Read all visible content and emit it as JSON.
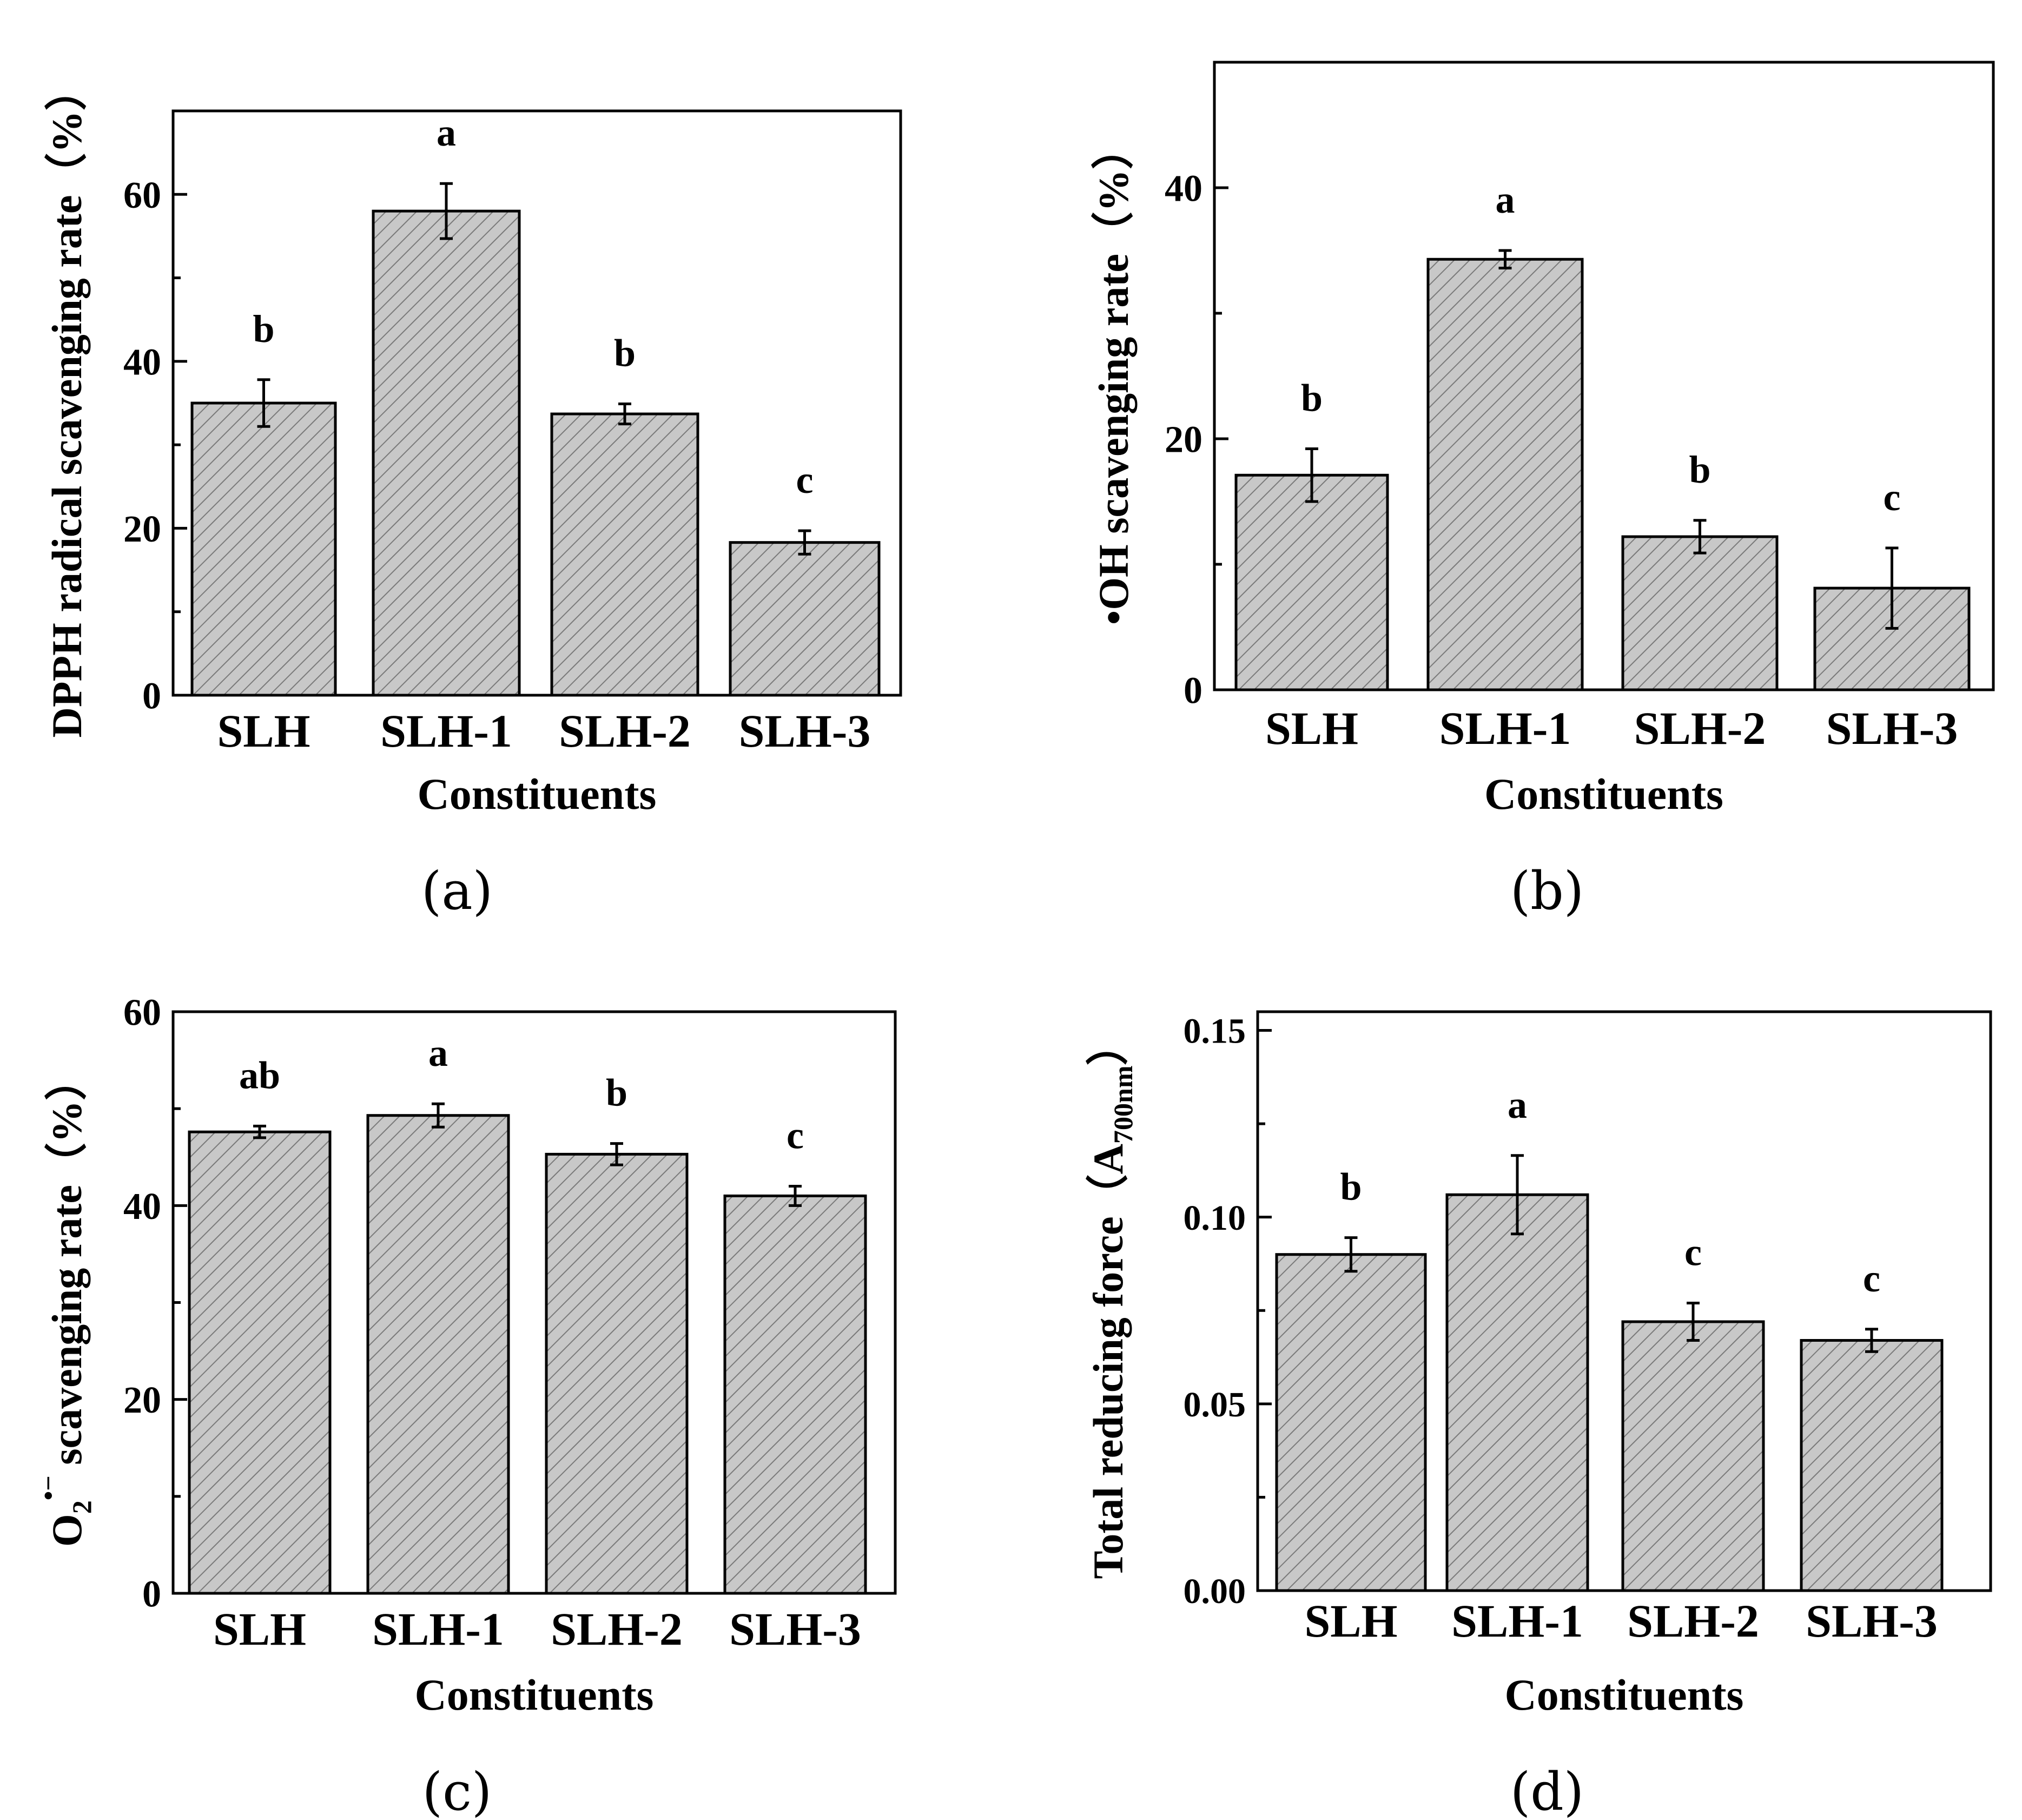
{
  "chart_data": [
    {
      "panel": "(a)",
      "type": "bar",
      "title": "",
      "xlabel": "Constituents",
      "ylabel": "DPPH radical scavenging rate（%）",
      "categories": [
        "SLH",
        "SLH-1",
        "SLH-2",
        "SLH-3"
      ],
      "values": [
        35,
        58,
        33.7,
        18.3
      ],
      "errors": [
        2.8,
        3.3,
        1.2,
        1.4
      ],
      "significance": [
        "b",
        "a",
        "b",
        "c"
      ],
      "ylim": [
        0,
        70
      ],
      "yticks": [
        0,
        20,
        40,
        60
      ],
      "ytick_labels": [
        "0",
        "20",
        "40",
        "60"
      ],
      "grid": false,
      "legend": "none"
    },
    {
      "panel": "(b)",
      "type": "bar",
      "title": "",
      "xlabel": "Constituents",
      "ylabel": "•OH  scavenging rate（%）",
      "categories": [
        "SLH",
        "SLH-1",
        "SLH-2",
        "SLH-3"
      ],
      "values": [
        17.1,
        34.3,
        12.2,
        8.1
      ],
      "errors": [
        2.1,
        0.7,
        1.3,
        3.2
      ],
      "significance": [
        "b",
        "a",
        "b",
        "c"
      ],
      "ylim": [
        0,
        50
      ],
      "yticks": [
        0,
        20,
        40
      ],
      "ytick_labels": [
        "0",
        "20",
        "40"
      ],
      "grid": false,
      "legend": "none"
    },
    {
      "panel": "(c)",
      "type": "bar",
      "title": "",
      "xlabel": "Constituents",
      "ylabel": "O2•− scavenging rate（%）",
      "ylabel_parts": {
        "main": "O",
        "sub": "2",
        "sup": "•−",
        "rest": " scavenging rate（%）"
      },
      "categories": [
        "SLH",
        "SLH-1",
        "SLH-2",
        "SLH-3"
      ],
      "values": [
        47.6,
        49.3,
        45.3,
        41
      ],
      "errors": [
        0.6,
        1.2,
        1.1,
        1.0
      ],
      "significance": [
        "ab",
        "a",
        "b",
        "c"
      ],
      "ylim": [
        0,
        60
      ],
      "yticks": [
        0,
        20,
        40,
        60
      ],
      "ytick_labels": [
        "0",
        "20",
        "40",
        "60"
      ],
      "grid": false,
      "legend": "none"
    },
    {
      "panel": "(d)",
      "type": "bar",
      "title": "",
      "xlabel": "Constituents",
      "ylabel": "Total reducing force（A700nm）",
      "ylabel_parts": {
        "main": "Total reducing force（A",
        "sub": "700nm",
        "rest": "）"
      },
      "categories": [
        "SLH",
        "SLH-1",
        "SLH-2",
        "SLH-3"
      ],
      "values": [
        0.09,
        0.106,
        0.072,
        0.067
      ],
      "errors": [
        0.0045,
        0.0105,
        0.005,
        0.003
      ],
      "significance": [
        "b",
        "a",
        "c",
        "c"
      ],
      "ylim": [
        0,
        0.155
      ],
      "yticks": [
        0,
        0.05,
        0.1,
        0.15
      ],
      "ytick_labels": [
        "0.00",
        "0.05",
        "0.10",
        "0.15"
      ],
      "grid": false,
      "legend": "none"
    }
  ],
  "colors": {
    "bar_fill": "#c8c8c8",
    "hatch_line": "#7a7a7a",
    "axis": "#000000",
    "text": "#000000"
  }
}
